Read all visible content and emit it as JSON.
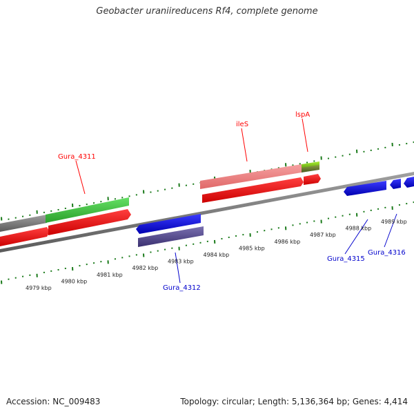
{
  "title": "Geobacter uraniireducens Rf4, complete genome",
  "accession_text": "Accession: NC_009483",
  "summary_text": "Topology: circular; Length: 5,136,364 bp; Genes: 4,414",
  "colors": {
    "backbone": "#808080",
    "forward_gene_label": "#ff0000",
    "reverse_gene_label": "#0000cc",
    "ticks": "#1a7a1a",
    "tick_label": "#222222"
  },
  "scale_labels": [
    "4979 kbp",
    "4980 kbp",
    "4981 kbp",
    "4982 kbp",
    "4983 kbp",
    "4984 kbp",
    "4985 kbp",
    "4986 kbp",
    "4987 kbp",
    "4988 kbp",
    "4989 kbp"
  ],
  "gene_labels": {
    "gura_4311": "Gura_4311",
    "iles": "ileS",
    "lspa": "lspA",
    "gura_4312": "Gura_4312",
    "gura_4315": "Gura_4315",
    "gura_4316": "Gura_4316"
  }
}
